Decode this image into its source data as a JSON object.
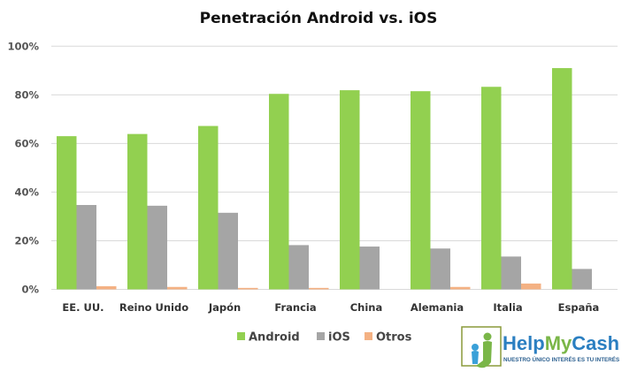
{
  "chart_data": {
    "type": "bar",
    "title": "Penetración Android vs. iOS",
    "xlabel": "",
    "ylabel": "",
    "ylim": [
      0,
      100
    ],
    "yticks": [
      "0%",
      "20%",
      "40%",
      "60%",
      "80%",
      "100%"
    ],
    "grid": true,
    "legend_position": "bottom",
    "categories": [
      "EE. UU.",
      "Reino Unido",
      "Japón",
      "Francia",
      "China",
      "Alemania",
      "Italia",
      "España"
    ],
    "series": [
      {
        "name": "Android",
        "color": "#92d050",
        "values": [
          63.0,
          63.9,
          67.2,
          80.4,
          81.9,
          81.5,
          83.3,
          91.0
        ]
      },
      {
        "name": "iOS",
        "color": "#a5a5a5",
        "values": [
          34.7,
          34.4,
          31.5,
          18.2,
          17.6,
          16.8,
          13.5,
          8.4
        ]
      },
      {
        "name": "Otros",
        "color": "#f4b183",
        "values": [
          1.3,
          1.0,
          0.6,
          0.6,
          0,
          1.0,
          2.4,
          0
        ]
      }
    ]
  },
  "logo": {
    "brand": "HelpMyCash",
    "tagline": "NUESTRO ÚNICO INTERÉS ES TU INTERÉS"
  }
}
